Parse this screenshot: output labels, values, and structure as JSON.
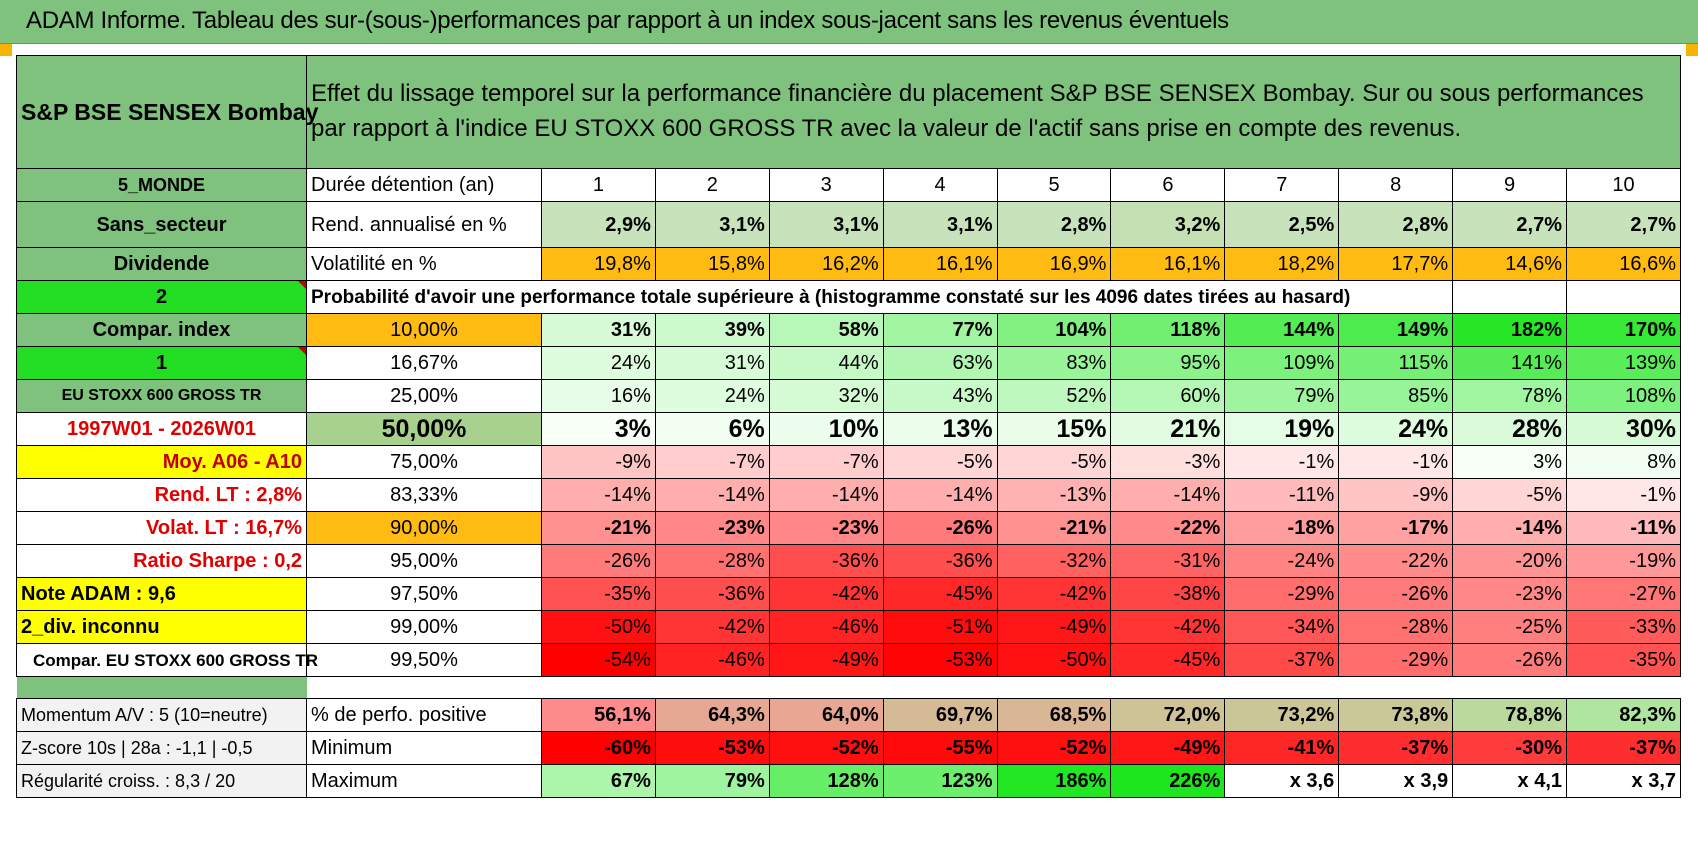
{
  "title": "ADAM Informe. Tableau des sur-(sous-)performances par rapport à un index sous-jacent sans les revenus éventuels",
  "header": {
    "name": "S&P BSE SENSEX Bombay",
    "description": "Effet du lissage temporel sur la performance financière du placement S&P BSE SENSEX Bombay. Sur ou sous performances par rapport à l'indice EU STOXX 600 GROSS TR avec la valeur de l'actif sans prise en compte des revenus."
  },
  "years": [
    "1",
    "2",
    "3",
    "4",
    "5",
    "6",
    "7",
    "8",
    "9",
    "10"
  ],
  "colors": {
    "banner": "#7ec27e",
    "bright": "#22dd22",
    "yellow": "#ffff00",
    "orange": "#ffbb11",
    "sage": "#a9d18e",
    "red_text": "#e00000"
  },
  "stats": {
    "side_labels": [
      "5_MONDE",
      "Sans_secteur",
      "Dividende"
    ],
    "rows": [
      {
        "label": "Durée détention (an)"
      },
      {
        "label": "Rend. annualisé en %",
        "values": [
          "2,9%",
          "3,1%",
          "3,1%",
          "3,1%",
          "2,8%",
          "3,2%",
          "2,5%",
          "2,8%",
          "2,7%",
          "2,7%"
        ]
      },
      {
        "label": "Volatilité en %",
        "values": [
          "19,8%",
          "15,8%",
          "16,2%",
          "16,1%",
          "16,9%",
          "16,1%",
          "18,2%",
          "17,7%",
          "14,6%",
          "16,6%"
        ]
      }
    ]
  },
  "proba": {
    "label": "Probabilité d'avoir une performance totale supérieure à (histogramme constaté sur les 4096 dates tirées au hasard)",
    "side_labels": [
      "2",
      "Compar. index",
      "1",
      "EU STOXX 600 GROSS TR",
      "1997W01 - 2026W01",
      "Moy. A06 - A10",
      "Rend. LT :    2,8%",
      "Volat. LT :    16,7%",
      "Ratio Sharpe :     0,2",
      "Note ADAM : 9,6",
      "2_div. inconnu",
      "Compar. EU STOXX 600 GROSS TR"
    ],
    "rows": [
      {
        "pct": "10,00%",
        "values": [
          "31%",
          "39%",
          "58%",
          "77%",
          "104%",
          "118%",
          "144%",
          "149%",
          "182%",
          "170%"
        ]
      },
      {
        "pct": "16,67%",
        "values": [
          "24%",
          "31%",
          "44%",
          "63%",
          "83%",
          "95%",
          "109%",
          "115%",
          "141%",
          "139%"
        ]
      },
      {
        "pct": "25,00%",
        "values": [
          "16%",
          "24%",
          "32%",
          "43%",
          "52%",
          "60%",
          "79%",
          "85%",
          "78%",
          "108%"
        ]
      },
      {
        "pct": "50,00%",
        "values": [
          "3%",
          "6%",
          "10%",
          "13%",
          "15%",
          "21%",
          "19%",
          "24%",
          "28%",
          "30%"
        ]
      },
      {
        "pct": "75,00%",
        "values": [
          "-9%",
          "-7%",
          "-7%",
          "-5%",
          "-5%",
          "-3%",
          "-1%",
          "-1%",
          "3%",
          "8%"
        ]
      },
      {
        "pct": "83,33%",
        "values": [
          "-14%",
          "-14%",
          "-14%",
          "-14%",
          "-13%",
          "-14%",
          "-11%",
          "-9%",
          "-5%",
          "-1%"
        ]
      },
      {
        "pct": "90,00%",
        "values": [
          "-21%",
          "-23%",
          "-23%",
          "-26%",
          "-21%",
          "-22%",
          "-18%",
          "-17%",
          "-14%",
          "-11%"
        ]
      },
      {
        "pct": "95,00%",
        "values": [
          "-26%",
          "-28%",
          "-36%",
          "-36%",
          "-32%",
          "-31%",
          "-24%",
          "-22%",
          "-20%",
          "-19%"
        ]
      },
      {
        "pct": "97,50%",
        "values": [
          "-35%",
          "-36%",
          "-42%",
          "-45%",
          "-42%",
          "-38%",
          "-29%",
          "-26%",
          "-23%",
          "-27%"
        ]
      },
      {
        "pct": "99,00%",
        "values": [
          "-50%",
          "-42%",
          "-46%",
          "-51%",
          "-49%",
          "-42%",
          "-34%",
          "-28%",
          "-25%",
          "-33%"
        ]
      },
      {
        "pct": "99,50%",
        "values": [
          "-54%",
          "-46%",
          "-49%",
          "-53%",
          "-50%",
          "-45%",
          "-37%",
          "-29%",
          "-26%",
          "-35%"
        ]
      }
    ]
  },
  "summary": {
    "rows": [
      {
        "side": "Momentum A/V : 5 (10=neutre)",
        "label": "% de perfo. positive",
        "values": [
          "56,1%",
          "64,3%",
          "64,0%",
          "69,7%",
          "68,5%",
          "72,0%",
          "73,2%",
          "73,8%",
          "78,8%",
          "82,3%"
        ]
      },
      {
        "side": "Z-score 10s | 28a : -1,1 | -0,5",
        "label": "Minimum",
        "values": [
          "-60%",
          "-53%",
          "-52%",
          "-55%",
          "-52%",
          "-49%",
          "-41%",
          "-37%",
          "-30%",
          "-37%"
        ]
      },
      {
        "side": "Régularité croiss. : 8,3 / 20",
        "label": "Maximum",
        "values": [
          "67%",
          "79%",
          "128%",
          "123%",
          "186%",
          "226%",
          "x 3,6",
          "x 3,9",
          "x 4,1",
          "x 3,7"
        ]
      }
    ]
  }
}
